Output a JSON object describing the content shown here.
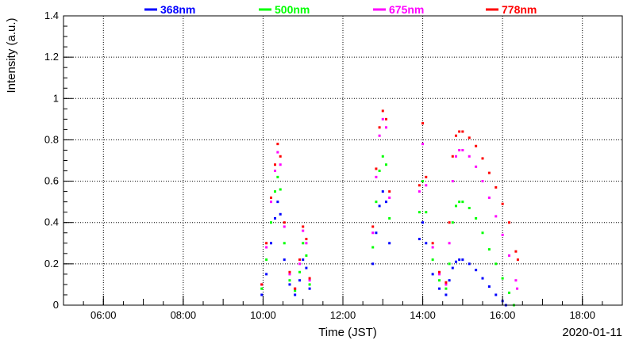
{
  "chart_data": {
    "type": "scatter",
    "title": "",
    "xlabel": "Time (JST)",
    "ylabel": "Intensity (a.u.)",
    "date_label": "2020-01-11",
    "xlim": [
      "05:00",
      "19:00"
    ],
    "ylim": [
      0,
      1.4
    ],
    "x_ticks": [
      "06:00",
      "08:00",
      "10:00",
      "12:00",
      "14:00",
      "16:00",
      "18:00"
    ],
    "y_ticks": [
      "0",
      "0.2",
      "0.4",
      "0.6",
      "0.8",
      "1",
      "1.2",
      "1.4"
    ],
    "grid": true,
    "legend_position": "top",
    "series": [
      {
        "name": "368nm",
        "color": "#0000ff",
        "points": [
          [
            "09:58",
            0.05
          ],
          [
            "10:05",
            0.15
          ],
          [
            "10:12",
            0.3
          ],
          [
            "10:18",
            0.42
          ],
          [
            "10:22",
            0.5
          ],
          [
            "10:26",
            0.44
          ],
          [
            "10:32",
            0.22
          ],
          [
            "10:40",
            0.1
          ],
          [
            "10:48",
            0.05
          ],
          [
            "10:55",
            0.12
          ],
          [
            "11:00",
            0.22
          ],
          [
            "11:05",
            0.18
          ],
          [
            "11:10",
            0.08
          ],
          [
            "12:45",
            0.2
          ],
          [
            "12:50",
            0.35
          ],
          [
            "12:55",
            0.48
          ],
          [
            "13:00",
            0.55
          ],
          [
            "13:05",
            0.5
          ],
          [
            "13:10",
            0.3
          ],
          [
            "13:55",
            0.32
          ],
          [
            "14:00",
            0.4
          ],
          [
            "14:05",
            0.3
          ],
          [
            "14:15",
            0.15
          ],
          [
            "14:25",
            0.08
          ],
          [
            "14:35",
            0.05
          ],
          [
            "14:40",
            0.12
          ],
          [
            "14:45",
            0.18
          ],
          [
            "14:50",
            0.21
          ],
          [
            "14:55",
            0.22
          ],
          [
            "15:00",
            0.22
          ],
          [
            "15:10",
            0.2
          ],
          [
            "15:20",
            0.17
          ],
          [
            "15:30",
            0.13
          ],
          [
            "15:40",
            0.09
          ],
          [
            "15:50",
            0.05
          ],
          [
            "16:00",
            0.02
          ],
          [
            "16:05",
            0.0
          ]
        ]
      },
      {
        "name": "500nm",
        "color": "#00ff00",
        "points": [
          [
            "09:58",
            0.08
          ],
          [
            "10:05",
            0.22
          ],
          [
            "10:12",
            0.4
          ],
          [
            "10:18",
            0.55
          ],
          [
            "10:22",
            0.62
          ],
          [
            "10:26",
            0.56
          ],
          [
            "10:32",
            0.3
          ],
          [
            "10:40",
            0.12
          ],
          [
            "10:48",
            0.07
          ],
          [
            "10:55",
            0.16
          ],
          [
            "11:00",
            0.3
          ],
          [
            "11:05",
            0.24
          ],
          [
            "11:10",
            0.1
          ],
          [
            "12:45",
            0.28
          ],
          [
            "12:50",
            0.5
          ],
          [
            "12:55",
            0.65
          ],
          [
            "13:00",
            0.72
          ],
          [
            "13:05",
            0.68
          ],
          [
            "13:10",
            0.42
          ],
          [
            "13:55",
            0.45
          ],
          [
            "14:00",
            0.6
          ],
          [
            "14:05",
            0.45
          ],
          [
            "14:15",
            0.22
          ],
          [
            "14:25",
            0.12
          ],
          [
            "14:35",
            0.08
          ],
          [
            "14:40",
            0.2
          ],
          [
            "14:45",
            0.4
          ],
          [
            "14:50",
            0.48
          ],
          [
            "14:55",
            0.5
          ],
          [
            "15:00",
            0.5
          ],
          [
            "15:10",
            0.47
          ],
          [
            "15:20",
            0.42
          ],
          [
            "15:30",
            0.35
          ],
          [
            "15:40",
            0.27
          ],
          [
            "15:50",
            0.2
          ],
          [
            "16:00",
            0.13
          ],
          [
            "16:10",
            0.06
          ],
          [
            "16:17",
            0.0
          ]
        ]
      },
      {
        "name": "675nm",
        "color": "#ff00ff",
        "points": [
          [
            "09:58",
            0.1
          ],
          [
            "10:05",
            0.28
          ],
          [
            "10:12",
            0.5
          ],
          [
            "10:18",
            0.65
          ],
          [
            "10:22",
            0.74
          ],
          [
            "10:26",
            0.68
          ],
          [
            "10:32",
            0.38
          ],
          [
            "10:40",
            0.15
          ],
          [
            "10:48",
            0.08
          ],
          [
            "10:55",
            0.2
          ],
          [
            "11:00",
            0.36
          ],
          [
            "11:05",
            0.3
          ],
          [
            "11:10",
            0.12
          ],
          [
            "12:45",
            0.35
          ],
          [
            "12:50",
            0.62
          ],
          [
            "12:55",
            0.82
          ],
          [
            "13:00",
            0.9
          ],
          [
            "13:05",
            0.86
          ],
          [
            "13:10",
            0.52
          ],
          [
            "13:55",
            0.55
          ],
          [
            "14:00",
            0.78
          ],
          [
            "14:05",
            0.58
          ],
          [
            "14:15",
            0.28
          ],
          [
            "14:25",
            0.15
          ],
          [
            "14:35",
            0.1
          ],
          [
            "14:40",
            0.3
          ],
          [
            "14:45",
            0.6
          ],
          [
            "14:50",
            0.72
          ],
          [
            "14:55",
            0.75
          ],
          [
            "15:00",
            0.75
          ],
          [
            "15:10",
            0.72
          ],
          [
            "15:20",
            0.67
          ],
          [
            "15:30",
            0.6
          ],
          [
            "15:40",
            0.52
          ],
          [
            "15:50",
            0.43
          ],
          [
            "16:00",
            0.34
          ],
          [
            "16:10",
            0.24
          ],
          [
            "16:20",
            0.12
          ],
          [
            "16:22",
            0.08
          ]
        ]
      },
      {
        "name": "778nm",
        "color": "#ff0000",
        "points": [
          [
            "09:58",
            0.1
          ],
          [
            "10:05",
            0.3
          ],
          [
            "10:12",
            0.52
          ],
          [
            "10:18",
            0.68
          ],
          [
            "10:22",
            0.78
          ],
          [
            "10:26",
            0.72
          ],
          [
            "10:32",
            0.4
          ],
          [
            "10:40",
            0.16
          ],
          [
            "10:48",
            0.08
          ],
          [
            "10:55",
            0.22
          ],
          [
            "11:00",
            0.38
          ],
          [
            "11:05",
            0.32
          ],
          [
            "11:10",
            0.13
          ],
          [
            "12:45",
            0.38
          ],
          [
            "12:50",
            0.66
          ],
          [
            "12:55",
            0.86
          ],
          [
            "13:00",
            0.94
          ],
          [
            "13:05",
            0.9
          ],
          [
            "13:10",
            0.55
          ],
          [
            "13:55",
            0.58
          ],
          [
            "14:00",
            0.88
          ],
          [
            "14:05",
            0.62
          ],
          [
            "14:15",
            0.3
          ],
          [
            "14:25",
            0.16
          ],
          [
            "14:35",
            0.11
          ],
          [
            "14:40",
            0.4
          ],
          [
            "14:45",
            0.72
          ],
          [
            "14:50",
            0.82
          ],
          [
            "14:55",
            0.84
          ],
          [
            "15:00",
            0.84
          ],
          [
            "15:10",
            0.81
          ],
          [
            "15:20",
            0.77
          ],
          [
            "15:30",
            0.71
          ],
          [
            "15:40",
            0.64
          ],
          [
            "15:50",
            0.57
          ],
          [
            "16:00",
            0.49
          ],
          [
            "16:10",
            0.4
          ],
          [
            "16:20",
            0.26
          ],
          [
            "16:23",
            0.22
          ]
        ]
      }
    ]
  }
}
